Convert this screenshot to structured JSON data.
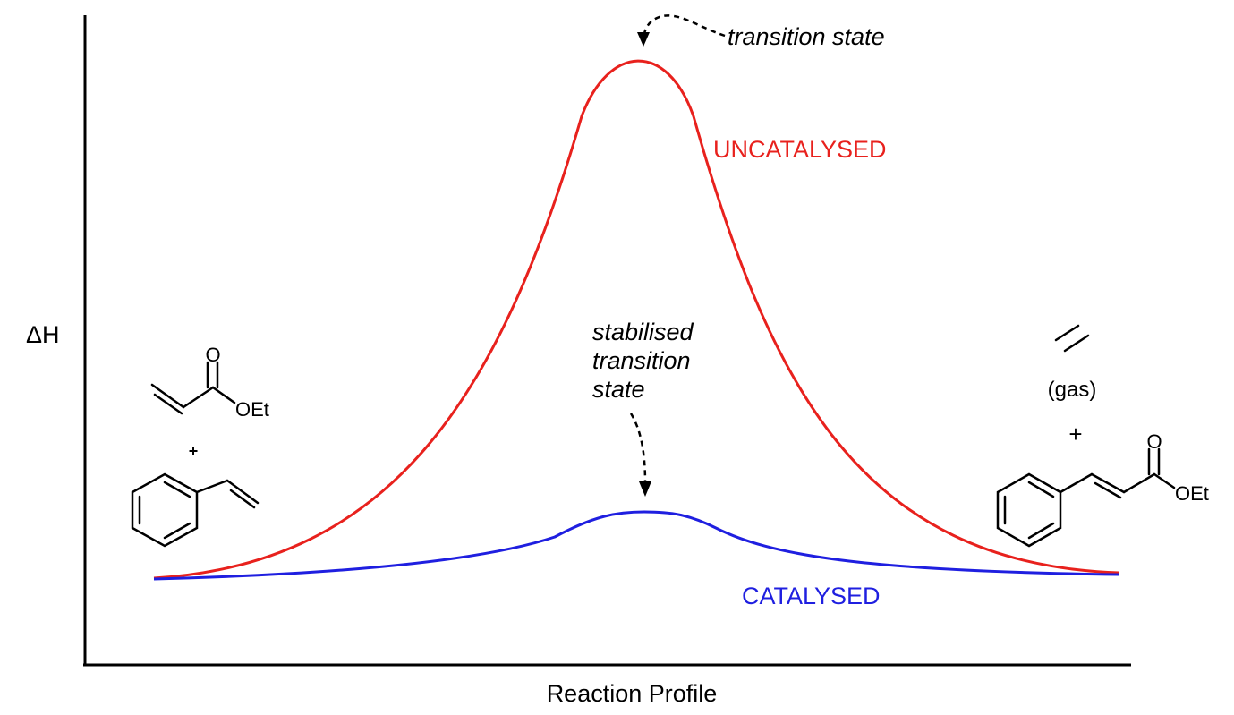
{
  "axes": {
    "y_label": "ΔH",
    "x_label": "Reaction Profile"
  },
  "curves": {
    "uncatalysed": {
      "label": "UNCATALYSED",
      "color": "#e8211d"
    },
    "catalysed": {
      "label": "CATALYSED",
      "color": "#1f1fe0"
    }
  },
  "annotations": {
    "transition_state": "transition state",
    "stabilised_ts": [
      "stabilised",
      "transition",
      "state"
    ]
  },
  "reactants": {
    "acrylate_carbonyl": "O",
    "acrylate_ester": "OEt",
    "plus": "+"
  },
  "products": {
    "gas_label": "(gas)",
    "plus": "+",
    "cinnamate_carbonyl": "O",
    "cinnamate_ester": "OEt"
  }
}
